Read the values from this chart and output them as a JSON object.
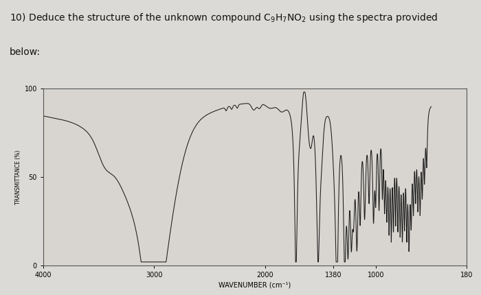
{
  "ylabel": "TRANSMITTANCE (%)",
  "xlabel": "WAVENUMBER (cm⁻¹)",
  "xlim": [
    4000,
    180
  ],
  "ylim": [
    0,
    100
  ],
  "ytick_vals": [
    0,
    50,
    100
  ],
  "ytick_labels": [
    "0",
    "50",
    "100"
  ],
  "xtick_vals": [
    4000,
    3000,
    2000,
    1380,
    1000,
    180
  ],
  "xtick_labels": [
    "4000",
    "3000",
    "2000",
    "1380",
    "1000",
    "180"
  ],
  "background_color": "#dcdad6",
  "plot_bg_color": "#d8d5d0",
  "line_color": "#1a1a1a",
  "title": "10) Deduce the structure of the unknown compound C$_9$H$_7$NO$_2$ using the spectra provided",
  "title2": "below:",
  "title_fontsize": 10,
  "title_color": "#111111"
}
